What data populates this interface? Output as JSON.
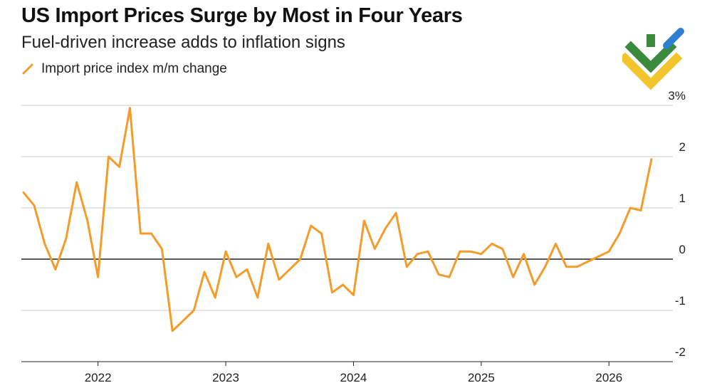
{
  "title": "US Import Prices Surge by Most in Four Years",
  "subtitle": "Fuel-driven increase adds to inflation signs",
  "legend": {
    "label": "Import price index m/m change",
    "color": "#f39c2a"
  },
  "logo": {
    "icon": "brand-logo-icon",
    "colors": [
      "#3a8a3e",
      "#2f7fd0",
      "#f2c52a"
    ]
  },
  "chart_data": {
    "type": "line",
    "title": "US Import Prices Surge by Most in Four Years",
    "subtitle": "Fuel-driven increase adds to inflation signs",
    "xlabel": "",
    "ylabel": "",
    "xlim": [
      2021.4,
      2026.5
    ],
    "ylim": [
      -2,
      3
    ],
    "y_ticks": [
      3,
      2,
      1,
      0,
      -1,
      -2
    ],
    "y_tick_labels": [
      "3%",
      "2",
      "1",
      "0",
      "-1",
      "-2"
    ],
    "x_ticks": [
      2022,
      2023,
      2024,
      2025,
      2026
    ],
    "x_tick_labels": [
      "2022",
      "2023",
      "2024",
      "2025",
      "2026"
    ],
    "grid": true,
    "legend_position": "top-left",
    "series": [
      {
        "name": "Import price index m/m change",
        "color": "#f39c2a",
        "x": [
          2021.417,
          2021.5,
          2021.583,
          2021.667,
          2021.75,
          2021.833,
          2021.917,
          2022.0,
          2022.083,
          2022.167,
          2022.25,
          2022.333,
          2022.417,
          2022.5,
          2022.583,
          2022.667,
          2022.75,
          2022.833,
          2022.917,
          2023.0,
          2023.083,
          2023.167,
          2023.25,
          2023.333,
          2023.417,
          2023.5,
          2023.583,
          2023.667,
          2023.75,
          2023.833,
          2023.917,
          2024.0,
          2024.083,
          2024.167,
          2024.25,
          2024.333,
          2024.417,
          2024.5,
          2024.583,
          2024.667,
          2024.75,
          2024.833,
          2024.917,
          2025.0,
          2025.083,
          2025.167,
          2025.25,
          2025.333,
          2025.417,
          2025.5,
          2025.583,
          2025.667,
          2025.75,
          2025.833,
          2025.917,
          2026.0,
          2026.083,
          2026.167,
          2026.25,
          2026.333
        ],
        "y": [
          1.3,
          1.05,
          0.3,
          -0.2,
          0.4,
          1.5,
          0.75,
          -0.35,
          2.0,
          1.8,
          2.95,
          0.5,
          0.5,
          0.2,
          -1.4,
          -1.2,
          -1.0,
          -0.25,
          -0.75,
          0.15,
          -0.35,
          -0.2,
          -0.75,
          0.3,
          -0.4,
          -0.2,
          0.0,
          0.65,
          0.5,
          -0.65,
          -0.5,
          -0.7,
          0.75,
          0.2,
          0.6,
          0.9,
          -0.15,
          0.1,
          0.15,
          -0.3,
          -0.35,
          0.15,
          0.15,
          0.1,
          0.3,
          0.2,
          -0.35,
          0.1,
          -0.5,
          -0.15,
          0.3,
          -0.15,
          -0.15,
          -0.05,
          0.05,
          0.15,
          0.5,
          1.0,
          0.95,
          1.95
        ]
      }
    ]
  }
}
